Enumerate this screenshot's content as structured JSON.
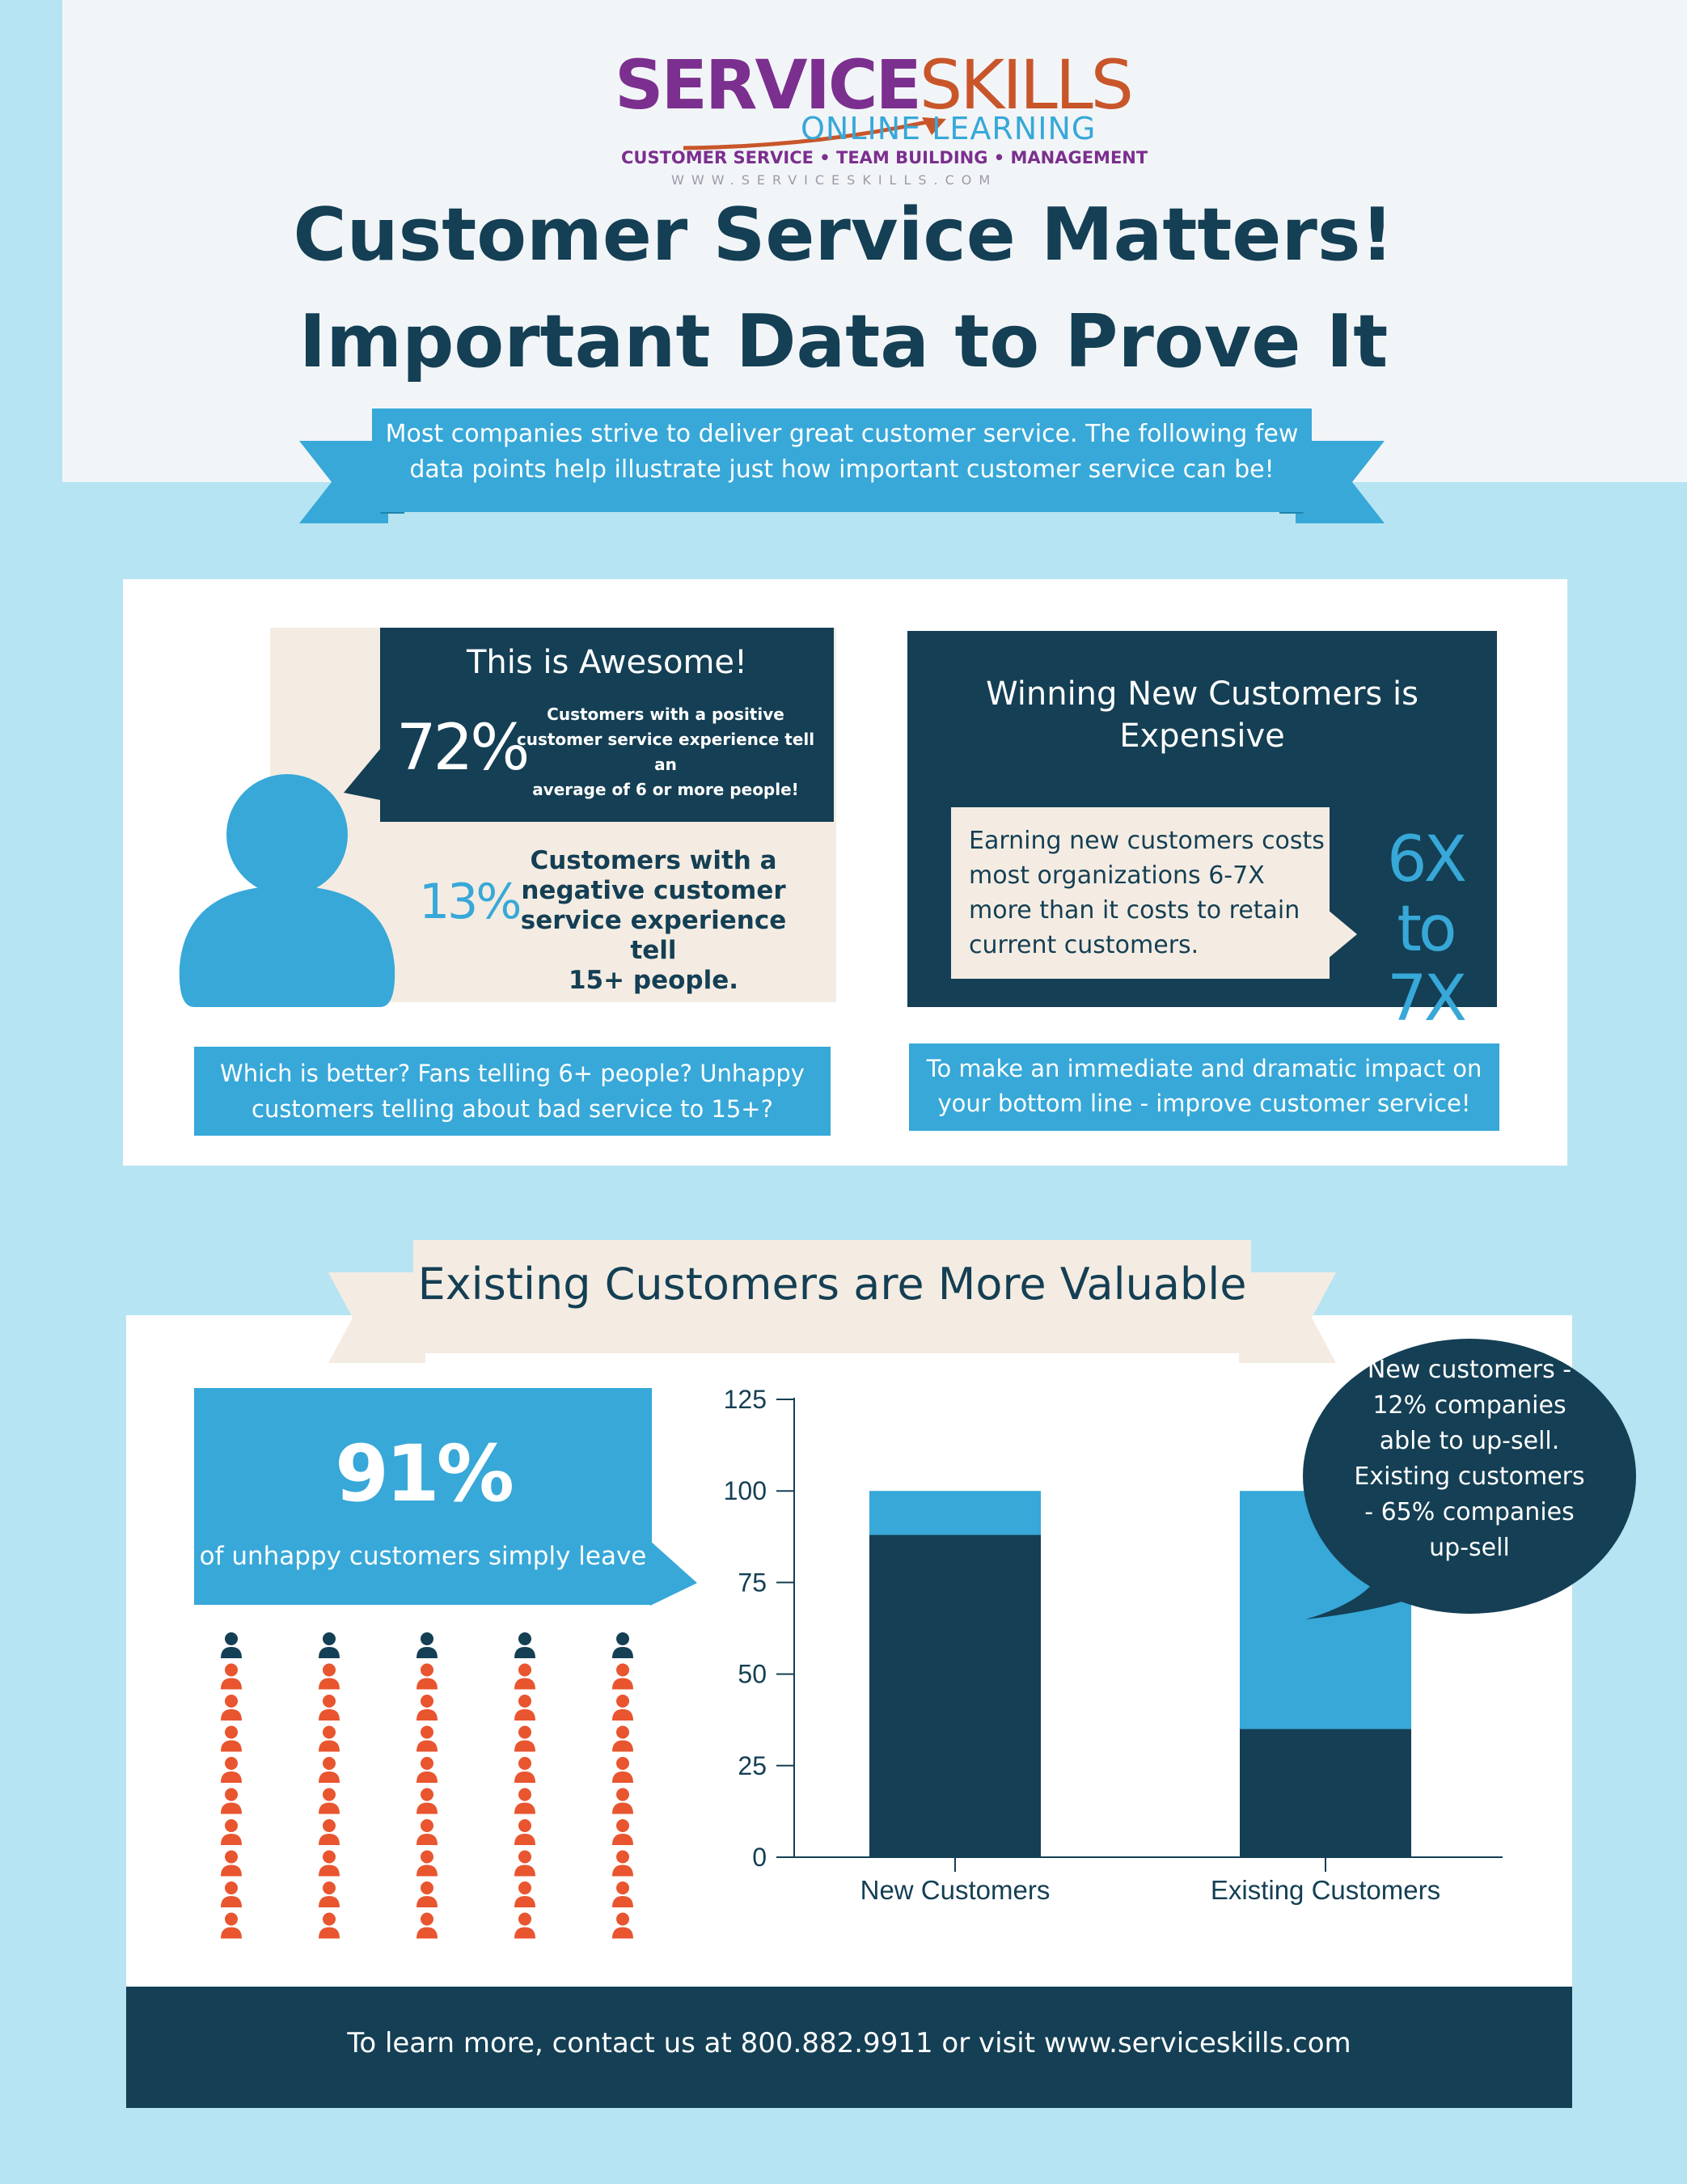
{
  "logo": {
    "brand_part1": "SERVICE",
    "brand_part2": "SKILLS",
    "subtitle": "ONLINE LEARNING",
    "tagline": "CUSTOMER SERVICE • TEAM BUILDING • MANAGEMENT",
    "url": "WWW.SERVICESKILLS.COM"
  },
  "header": {
    "title_line1": "Customer Service Matters!",
    "title_line2": "Important Data to Prove It",
    "intro_line1": "Most companies strive to deliver great customer service. The following few",
    "intro_line2": "data points help illustrate just how important customer service can be!"
  },
  "awesome": {
    "heading": "This is Awesome!",
    "positive_pct": "72%",
    "positive_line1": "Customers with a positive",
    "positive_line2": "customer service experience  tell an",
    "positive_line3": "average of 6 or more people!",
    "negative_pct": "13%",
    "negative_line1": "Customers with a",
    "negative_line2": "negative customer",
    "negative_line3": "service experience tell",
    "negative_line4": "15+ people.",
    "question_line1": "Which is better? Fans telling 6+ people? Unhappy",
    "question_line2": "customers telling about bad service to 15+?"
  },
  "winning": {
    "heading_line1": "Winning New Customers is",
    "heading_line2": "Expensive",
    "body_line1": "Earning new customers costs",
    "body_line2": "most organizations 6-7X",
    "body_line3": "more than it costs to retain",
    "body_line4": "current customers.",
    "big_line1": "6X to",
    "big_line2": "7X",
    "cta_line1": "To make an immediate and dramatic impact on",
    "cta_line2": "your bottom line - improve customer service!"
  },
  "existing": {
    "banner": "Existing Customers are More Valuable",
    "big_pct": "91%",
    "big_caption": "of unhappy customers simply leave",
    "people_total": 50,
    "people_highlighted": 5,
    "bubble_line1": "New customers -",
    "bubble_line2": "12% companies",
    "bubble_line3": "able to up-sell.",
    "bubble_line4": "Existing customers",
    "bubble_line5": "- 65% companies",
    "bubble_line6": "up-sell"
  },
  "chart_data": {
    "type": "bar",
    "stacked": true,
    "categories": [
      "New Customers",
      "Existing Customers"
    ],
    "series": [
      {
        "values": [
          88,
          35
        ],
        "color": "#143f54"
      },
      {
        "values": [
          12,
          65
        ],
        "color": "#37a8d8"
      }
    ],
    "yticks": [
      0,
      25,
      50,
      75,
      100,
      125
    ],
    "ylim": [
      0,
      125
    ],
    "grid": false
  },
  "footer": {
    "text": "To learn more, contact us at 800.882.9911 or visit www.serviceskills.com"
  },
  "colors": {
    "navy": "#143f54",
    "blue": "#37a8d8",
    "beige": "#f4ece2",
    "background": "#b7e4f2",
    "orange": "#e8552f"
  }
}
